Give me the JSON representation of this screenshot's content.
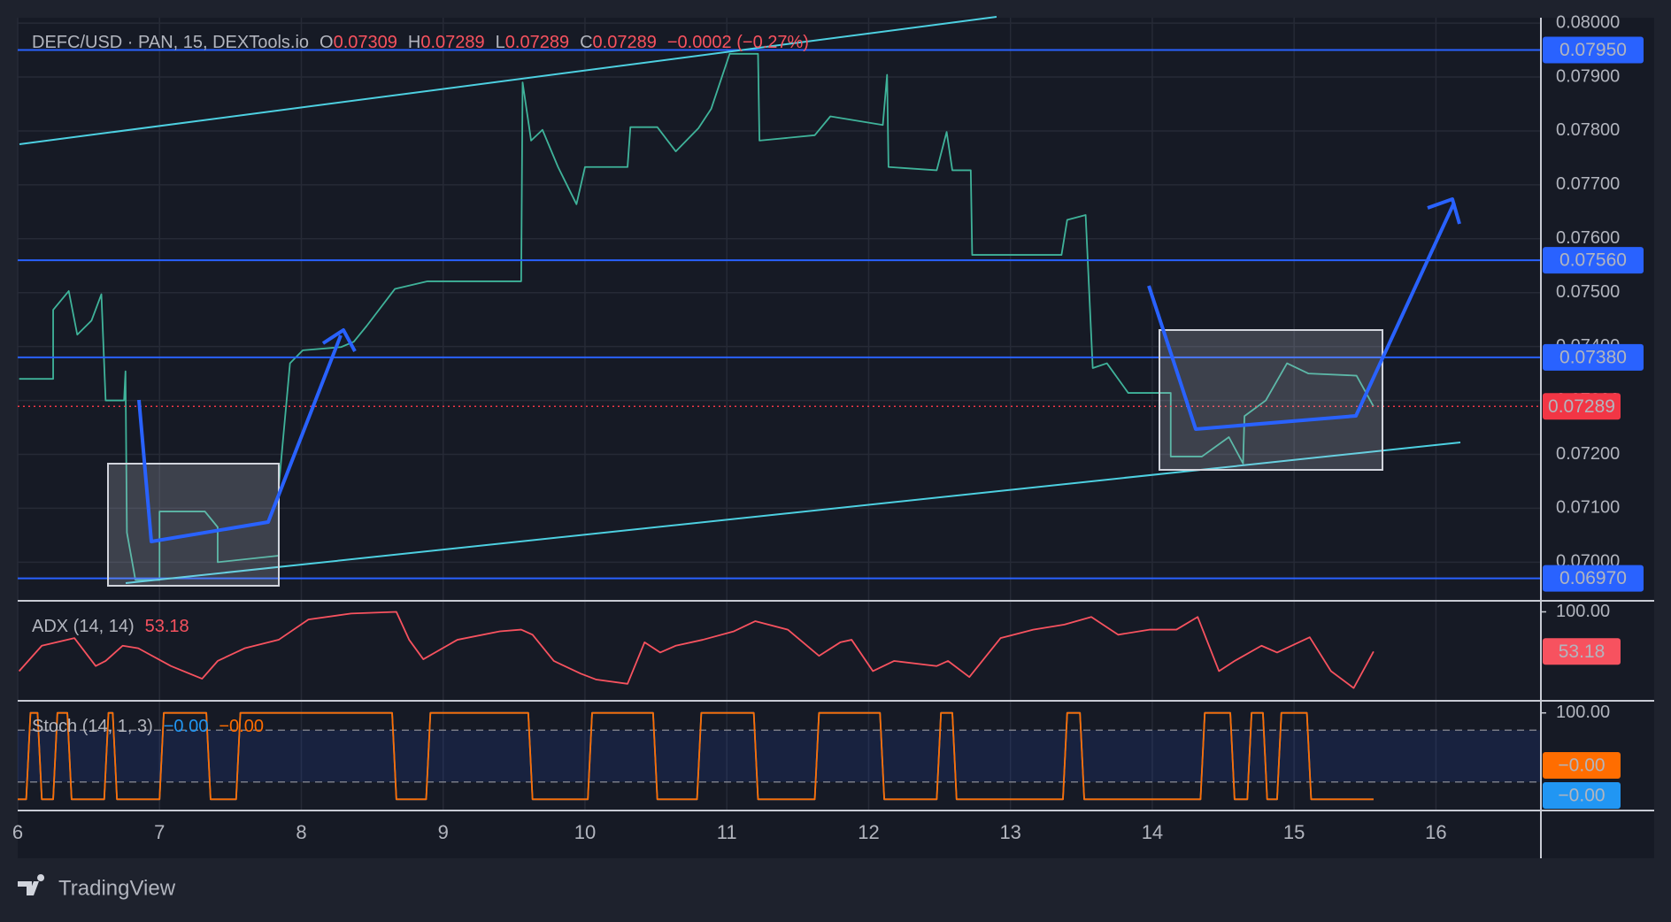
{
  "branding": "TradingView",
  "chart_data": [
    {
      "type": "line",
      "title": "DEFC/USD · PAN, 15, DEXTools.io",
      "ohlc": [
        {
          "key": "O",
          "value": "0.07309"
        },
        {
          "key": "H",
          "value": "0.07289"
        },
        {
          "key": "L",
          "value": "0.07289"
        },
        {
          "key": "C",
          "value": "0.07289"
        }
      ],
      "change": "−0.0002 (−0.27%)",
      "xlim": [
        6,
        16.74
      ],
      "ylim": [
        0.0693,
        0.0801
      ],
      "xticks": [
        6,
        7,
        8,
        9,
        10,
        11,
        12,
        13,
        14,
        15,
        16
      ],
      "yticks": [
        {
          "value": 0.07,
          "label": "0.07000"
        },
        {
          "value": 0.071,
          "label": "0.07100"
        },
        {
          "value": 0.072,
          "label": "0.07200"
        },
        {
          "value": 0.073,
          "label": "0.07300"
        },
        {
          "value": 0.074,
          "label": "0.07400"
        },
        {
          "value": 0.075,
          "label": "0.07500"
        },
        {
          "value": 0.076,
          "label": "0.07600"
        },
        {
          "value": 0.077,
          "label": "0.07700"
        },
        {
          "value": 0.078,
          "label": "0.07800"
        },
        {
          "value": 0.079,
          "label": "0.07900"
        },
        {
          "value": 0.08,
          "label": "0.08000"
        }
      ],
      "grid": true,
      "price_line": true,
      "x": [
        6.01,
        6.25,
        6.25,
        6.36,
        6.42,
        6.52,
        6.59,
        6.62,
        6.75,
        6.76,
        6.77,
        6.83,
        7.0,
        7.0,
        7.32,
        7.41,
        7.41,
        7.84,
        7.84,
        7.92,
        8.01,
        8.28,
        8.37,
        8.46,
        8.66,
        8.89,
        9.55,
        9.56,
        9.62,
        9.7,
        9.81,
        9.94,
        10.0,
        10.3,
        10.32,
        10.51,
        10.64,
        10.8,
        10.89,
        11.02,
        11.22,
        11.23,
        11.62,
        11.73,
        12.1,
        12.13,
        12.14,
        12.48,
        12.55,
        12.59,
        12.72,
        12.73,
        13.36,
        13.4,
        13.53,
        13.58,
        13.68,
        13.83,
        14.13,
        14.13,
        14.35,
        14.54,
        14.64,
        14.65,
        14.8,
        14.95,
        15.1,
        15.44,
        15.56
      ],
      "series": [
        {
          "color": "#3fb39a",
          "values": [
            0.0734,
            0.0734,
            0.07468,
            0.07503,
            0.07422,
            0.07448,
            0.07497,
            0.073,
            0.073,
            0.07354,
            0.07055,
            0.06967,
            0.06967,
            0.07094,
            0.07094,
            0.07065,
            0.07,
            0.07012,
            0.07138,
            0.07369,
            0.07393,
            0.07399,
            0.07409,
            0.07438,
            0.07507,
            0.07521,
            0.07521,
            0.0789,
            0.07782,
            0.07802,
            0.07733,
            0.07664,
            0.07733,
            0.07733,
            0.07807,
            0.07807,
            0.07762,
            0.07805,
            0.07841,
            0.07943,
            0.07943,
            0.07782,
            0.07792,
            0.07827,
            0.07811,
            0.07904,
            0.07733,
            0.07727,
            0.07798,
            0.07727,
            0.07727,
            0.0757,
            0.0757,
            0.07635,
            0.07644,
            0.0736,
            0.07369,
            0.07314,
            0.07314,
            0.07196,
            0.07196,
            0.07232,
            0.07183,
            0.07271,
            0.073,
            0.07369,
            0.0735,
            0.07346,
            0.07289
          ],
          "last": {
            "value": 0.07289,
            "label": "0.07289",
            "color": "#f23645"
          }
        }
      ],
      "levels": [
        {
          "value": 0.0795,
          "label": "0.07950"
        },
        {
          "value": 0.0756,
          "label": "0.07560"
        },
        {
          "value": 0.0738,
          "label": "0.07380"
        },
        {
          "value": 0.0697,
          "label": "0.06970"
        }
      ],
      "level_color": "#2962ff"
    },
    {
      "type": "line",
      "title": "ADX (14, 14)",
      "xlim": [
        6,
        16.74
      ],
      "ylim": [
        -4,
        112
      ],
      "yticks": [
        {
          "value": 100,
          "label": "100.00"
        }
      ],
      "x": [
        6.01,
        6.17,
        6.4,
        6.55,
        6.62,
        6.74,
        6.85,
        7.08,
        7.3,
        7.41,
        7.6,
        7.84,
        8.05,
        8.35,
        8.67,
        8.76,
        8.86,
        9.1,
        9.4,
        9.55,
        9.63,
        9.78,
        9.97,
        10.08,
        10.3,
        10.42,
        10.53,
        10.64,
        10.83,
        11.05,
        11.2,
        11.43,
        11.65,
        11.8,
        11.88,
        12.03,
        12.18,
        12.48,
        12.56,
        12.71,
        12.93,
        13.16,
        13.38,
        13.57,
        13.76,
        13.98,
        14.17,
        14.32,
        14.47,
        14.58,
        14.77,
        14.88,
        15.11,
        15.26,
        15.42,
        15.56
      ],
      "series": [
        {
          "color": "#f7525f",
          "values": [
            30,
            60,
            69,
            36,
            42,
            60,
            57,
            36,
            21,
            42,
            57,
            67,
            91,
            98,
            100,
            67,
            44,
            67,
            77,
            79,
            73,
            42,
            27,
            20,
            15,
            64,
            52,
            60,
            67,
            77,
            89,
            79,
            48,
            64,
            67,
            30,
            42,
            36,
            42,
            23,
            69,
            79,
            85,
            94,
            73,
            79,
            79,
            94,
            30,
            42,
            60,
            52,
            70,
            30,
            10,
            53.18
          ],
          "last": {
            "value": 53.18,
            "label": "53.18",
            "color": "#f7525f"
          }
        }
      ]
    },
    {
      "type": "line",
      "title": "Stoch (14, 1, 3)",
      "xlim": [
        6,
        16.74
      ],
      "ylim": [
        -12,
        113
      ],
      "yticks": [
        {
          "value": 100,
          "label": "100.00"
        }
      ],
      "bands": [
        20,
        80
      ],
      "x": [
        6.0,
        6.06,
        6.09,
        6.14,
        6.17,
        6.25,
        6.28,
        6.35,
        6.38,
        6.61,
        6.64,
        6.67,
        6.7,
        7.0,
        7.03,
        7.33,
        7.36,
        7.54,
        7.57,
        8.64,
        8.67,
        8.88,
        8.91,
        9.6,
        9.63,
        10.02,
        10.05,
        10.48,
        10.51,
        10.79,
        10.82,
        11.19,
        11.22,
        11.62,
        11.65,
        12.08,
        12.11,
        12.48,
        12.51,
        12.59,
        12.62,
        13.37,
        13.4,
        13.49,
        13.52,
        14.34,
        14.37,
        14.55,
        14.58,
        14.67,
        14.7,
        14.78,
        14.81,
        14.88,
        14.91,
        15.09,
        15.12,
        15.56
      ],
      "series": [
        {
          "color": "#2196f3",
          "values": [
            0,
            0,
            100,
            100,
            0,
            0,
            100,
            100,
            0,
            0,
            100,
            100,
            0,
            0,
            100,
            100,
            0,
            0,
            100,
            100,
            0,
            0,
            100,
            100,
            0,
            0,
            100,
            100,
            0,
            0,
            100,
            100,
            0,
            0,
            100,
            100,
            0,
            0,
            100,
            100,
            0,
            0,
            100,
            100,
            0,
            0,
            100,
            100,
            0,
            0,
            100,
            100,
            0,
            0,
            100,
            100,
            0,
            0
          ],
          "last": {
            "value": 0,
            "label": "−0.00",
            "color": "#2196f3"
          }
        },
        {
          "color": "#ff6d00",
          "values": [
            0,
            0,
            100,
            100,
            0,
            0,
            100,
            100,
            0,
            0,
            100,
            100,
            0,
            0,
            100,
            100,
            0,
            0,
            100,
            100,
            0,
            0,
            100,
            100,
            0,
            0,
            100,
            100,
            0,
            0,
            100,
            100,
            0,
            0,
            100,
            100,
            0,
            0,
            100,
            100,
            0,
            0,
            100,
            100,
            0,
            0,
            100,
            100,
            0,
            0,
            100,
            100,
            0,
            0,
            100,
            100,
            0,
            0
          ],
          "last": {
            "value": 0,
            "label": "−0.00",
            "color": "#ff6d00"
          }
        }
      ]
    }
  ]
}
